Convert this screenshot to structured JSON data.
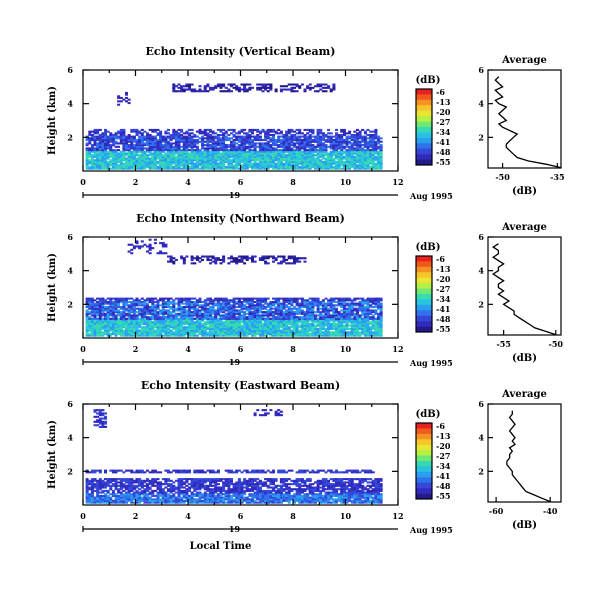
{
  "figure": {
    "xlabel": "Local Time",
    "date_label": "Aug 1995",
    "day_label": "19",
    "colorbar": {
      "unit": "(dB)",
      "ticks": [
        "-6",
        "-13",
        "-20",
        "-27",
        "-34",
        "-41",
        "-48",
        "-55"
      ],
      "colors": [
        "#e8201e",
        "#f05a1c",
        "#f59322",
        "#f5c52b",
        "#e8e632",
        "#b6ef45",
        "#6fe874",
        "#36d9b0",
        "#29c2e0",
        "#2a9ff0",
        "#2f73ec",
        "#3447d8",
        "#322abd",
        "#221a8a"
      ]
    }
  },
  "chart_data": [
    {
      "type": "heatmap",
      "title": "Echo Intensity (Vertical Beam)",
      "ylabel": "Height (km)",
      "xlim": [
        0,
        12
      ],
      "ylim": [
        0,
        6
      ],
      "xticks": [
        "0",
        "2",
        "4",
        "6",
        "8",
        "10",
        "12"
      ],
      "yticks": [
        "2",
        "4",
        "6"
      ],
      "average": {
        "title": "Average",
        "xlabel": "(dB)",
        "xticks": [
          "-50",
          "-35"
        ],
        "xlim": [
          -54,
          -34
        ],
        "heights": [
          0.2,
          0.4,
          0.6,
          0.8,
          1.0,
          1.2,
          1.4,
          1.6,
          1.8,
          2.0,
          2.2,
          2.4,
          2.6,
          2.8,
          3.0,
          3.2,
          3.4,
          3.6,
          3.8,
          4.0,
          4.2,
          4.4,
          4.6,
          4.8,
          5.0,
          5.2,
          5.4,
          5.6
        ],
        "values": [
          -34,
          -38,
          -43,
          -46,
          -47,
          -48,
          -49,
          -49,
          -48,
          -47,
          -46,
          -48,
          -50,
          -51,
          -49,
          -50,
          -51,
          -50,
          -49,
          -51,
          -52,
          -50,
          -51,
          -52,
          -50,
          -51,
          -52,
          -51
        ]
      }
    },
    {
      "type": "heatmap",
      "title": "Echo Intensity (Northward Beam)",
      "ylabel": "Height (km)",
      "xlim": [
        0,
        12
      ],
      "ylim": [
        0,
        6
      ],
      "xticks": [
        "0",
        "2",
        "4",
        "6",
        "8",
        "10",
        "12"
      ],
      "yticks": [
        "2",
        "4",
        "6"
      ],
      "average": {
        "title": "Average",
        "xlabel": "(dB)",
        "xticks": [
          "-55",
          "-50"
        ],
        "xlim": [
          -56.5,
          -49.5
        ],
        "heights": [
          0.2,
          0.4,
          0.6,
          0.8,
          1.0,
          1.2,
          1.4,
          1.6,
          1.8,
          2.0,
          2.2,
          2.4,
          2.6,
          2.8,
          3.0,
          3.2,
          3.4,
          3.6,
          3.8,
          4.0,
          4.2,
          4.4,
          4.6,
          4.8,
          5.0,
          5.2,
          5.4,
          5.6
        ],
        "values": [
          -50,
          -51,
          -52,
          -52.5,
          -53,
          -53.5,
          -54,
          -54,
          -54.5,
          -55,
          -54.5,
          -55,
          -55.5,
          -55,
          -55.5,
          -55.5,
          -55,
          -55.5,
          -56,
          -55.5,
          -55.5,
          -55,
          -55.5,
          -56,
          -55.5,
          -55.5,
          -56,
          -55.5
        ]
      }
    },
    {
      "type": "heatmap",
      "title": "Echo Intensity (Eastward Beam)",
      "ylabel": "Height (km)",
      "xlim": [
        0,
        12
      ],
      "ylim": [
        0,
        6
      ],
      "xticks": [
        "0",
        "2",
        "4",
        "6",
        "8",
        "10",
        "12"
      ],
      "yticks": [
        "2",
        "4",
        "6"
      ],
      "average": {
        "title": "Average",
        "xlabel": "(dB)",
        "xticks": [
          "-60",
          "-40"
        ],
        "xlim": [
          -63,
          -36
        ],
        "heights": [
          0.2,
          0.4,
          0.6,
          0.8,
          1.0,
          1.2,
          1.4,
          1.6,
          1.8,
          2.0,
          2.2,
          2.4,
          2.6,
          2.8,
          3.0,
          3.2,
          3.4,
          3.6,
          3.8,
          4.0,
          4.2,
          4.4,
          4.6,
          4.8,
          5.0,
          5.2,
          5.4,
          5.6
        ],
        "values": [
          -40,
          -43,
          -46,
          -49,
          -50,
          -51,
          -52,
          -53,
          -54,
          -54,
          -55,
          -56,
          -56,
          -55,
          -55,
          -54,
          -55,
          -53,
          -54,
          -53,
          -54,
          -55,
          -54,
          -53,
          -54,
          -55,
          -54,
          -54
        ]
      }
    }
  ]
}
